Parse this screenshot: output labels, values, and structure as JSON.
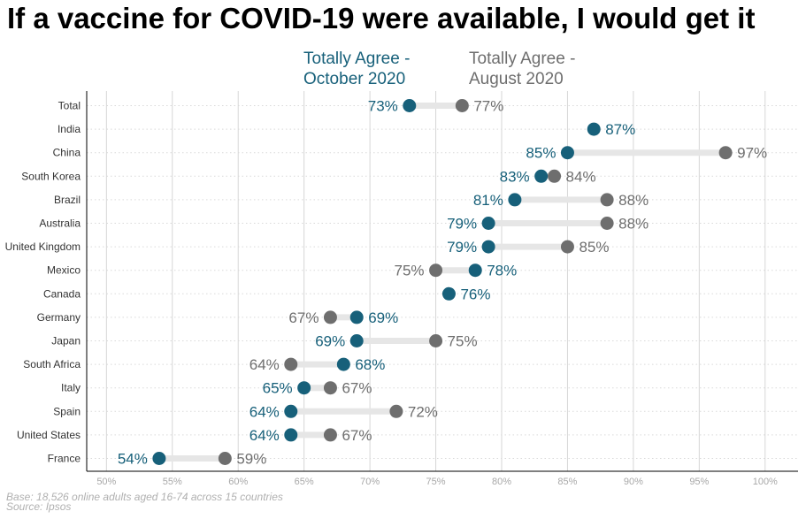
{
  "chart_data": {
    "type": "dumbbell",
    "title": "If a vaccine for COVID-19 were available, I would get it",
    "series": [
      {
        "key": "oct",
        "name": "Totally Agree - October 2020",
        "color": "#17607a"
      },
      {
        "key": "aug",
        "name": "Totally Agree - August 2020",
        "color": "#6e6e6e"
      }
    ],
    "categories": [
      "Total",
      "India",
      "China",
      "South Korea",
      "Brazil",
      "Australia",
      "United Kingdom",
      "Mexico",
      "Canada",
      "Germany",
      "Japan",
      "South Africa",
      "Italy",
      "Spain",
      "United States",
      "France"
    ],
    "rows": [
      {
        "country": "Total",
        "oct": 73,
        "aug": 77
      },
      {
        "country": "India",
        "oct": 87,
        "aug": null
      },
      {
        "country": "China",
        "oct": 85,
        "aug": 97
      },
      {
        "country": "South Korea",
        "oct": 83,
        "aug": 84
      },
      {
        "country": "Brazil",
        "oct": 81,
        "aug": 88
      },
      {
        "country": "Australia",
        "oct": 79,
        "aug": 88
      },
      {
        "country": "United Kingdom",
        "oct": 79,
        "aug": 85
      },
      {
        "country": "Mexico",
        "oct": 78,
        "aug": 75
      },
      {
        "country": "Canada",
        "oct": 76,
        "aug": null
      },
      {
        "country": "Germany",
        "oct": 69,
        "aug": 67
      },
      {
        "country": "Japan",
        "oct": 69,
        "aug": 75
      },
      {
        "country": "South Africa",
        "oct": 68,
        "aug": 64
      },
      {
        "country": "Italy",
        "oct": 65,
        "aug": 67
      },
      {
        "country": "Spain",
        "oct": 64,
        "aug": 72
      },
      {
        "country": "United States",
        "oct": 64,
        "aug": 67
      },
      {
        "country": "France",
        "oct": 54,
        "aug": 59
      }
    ],
    "xlim": [
      48.5,
      102.5
    ],
    "xticks": [
      50,
      55,
      60,
      65,
      70,
      75,
      80,
      85,
      90,
      95,
      100
    ],
    "tick_suffix": "%",
    "grid": true,
    "legend_position": "top"
  },
  "legend": {
    "oct_label": "Totally Agree -\nOctober 2020",
    "aug_label": "Totally Agree -\nAugust 2020"
  },
  "footnote": {
    "base": "Base: 18,526 online adults aged 16-74 across 15 countries",
    "source": "Source: Ipsos"
  }
}
